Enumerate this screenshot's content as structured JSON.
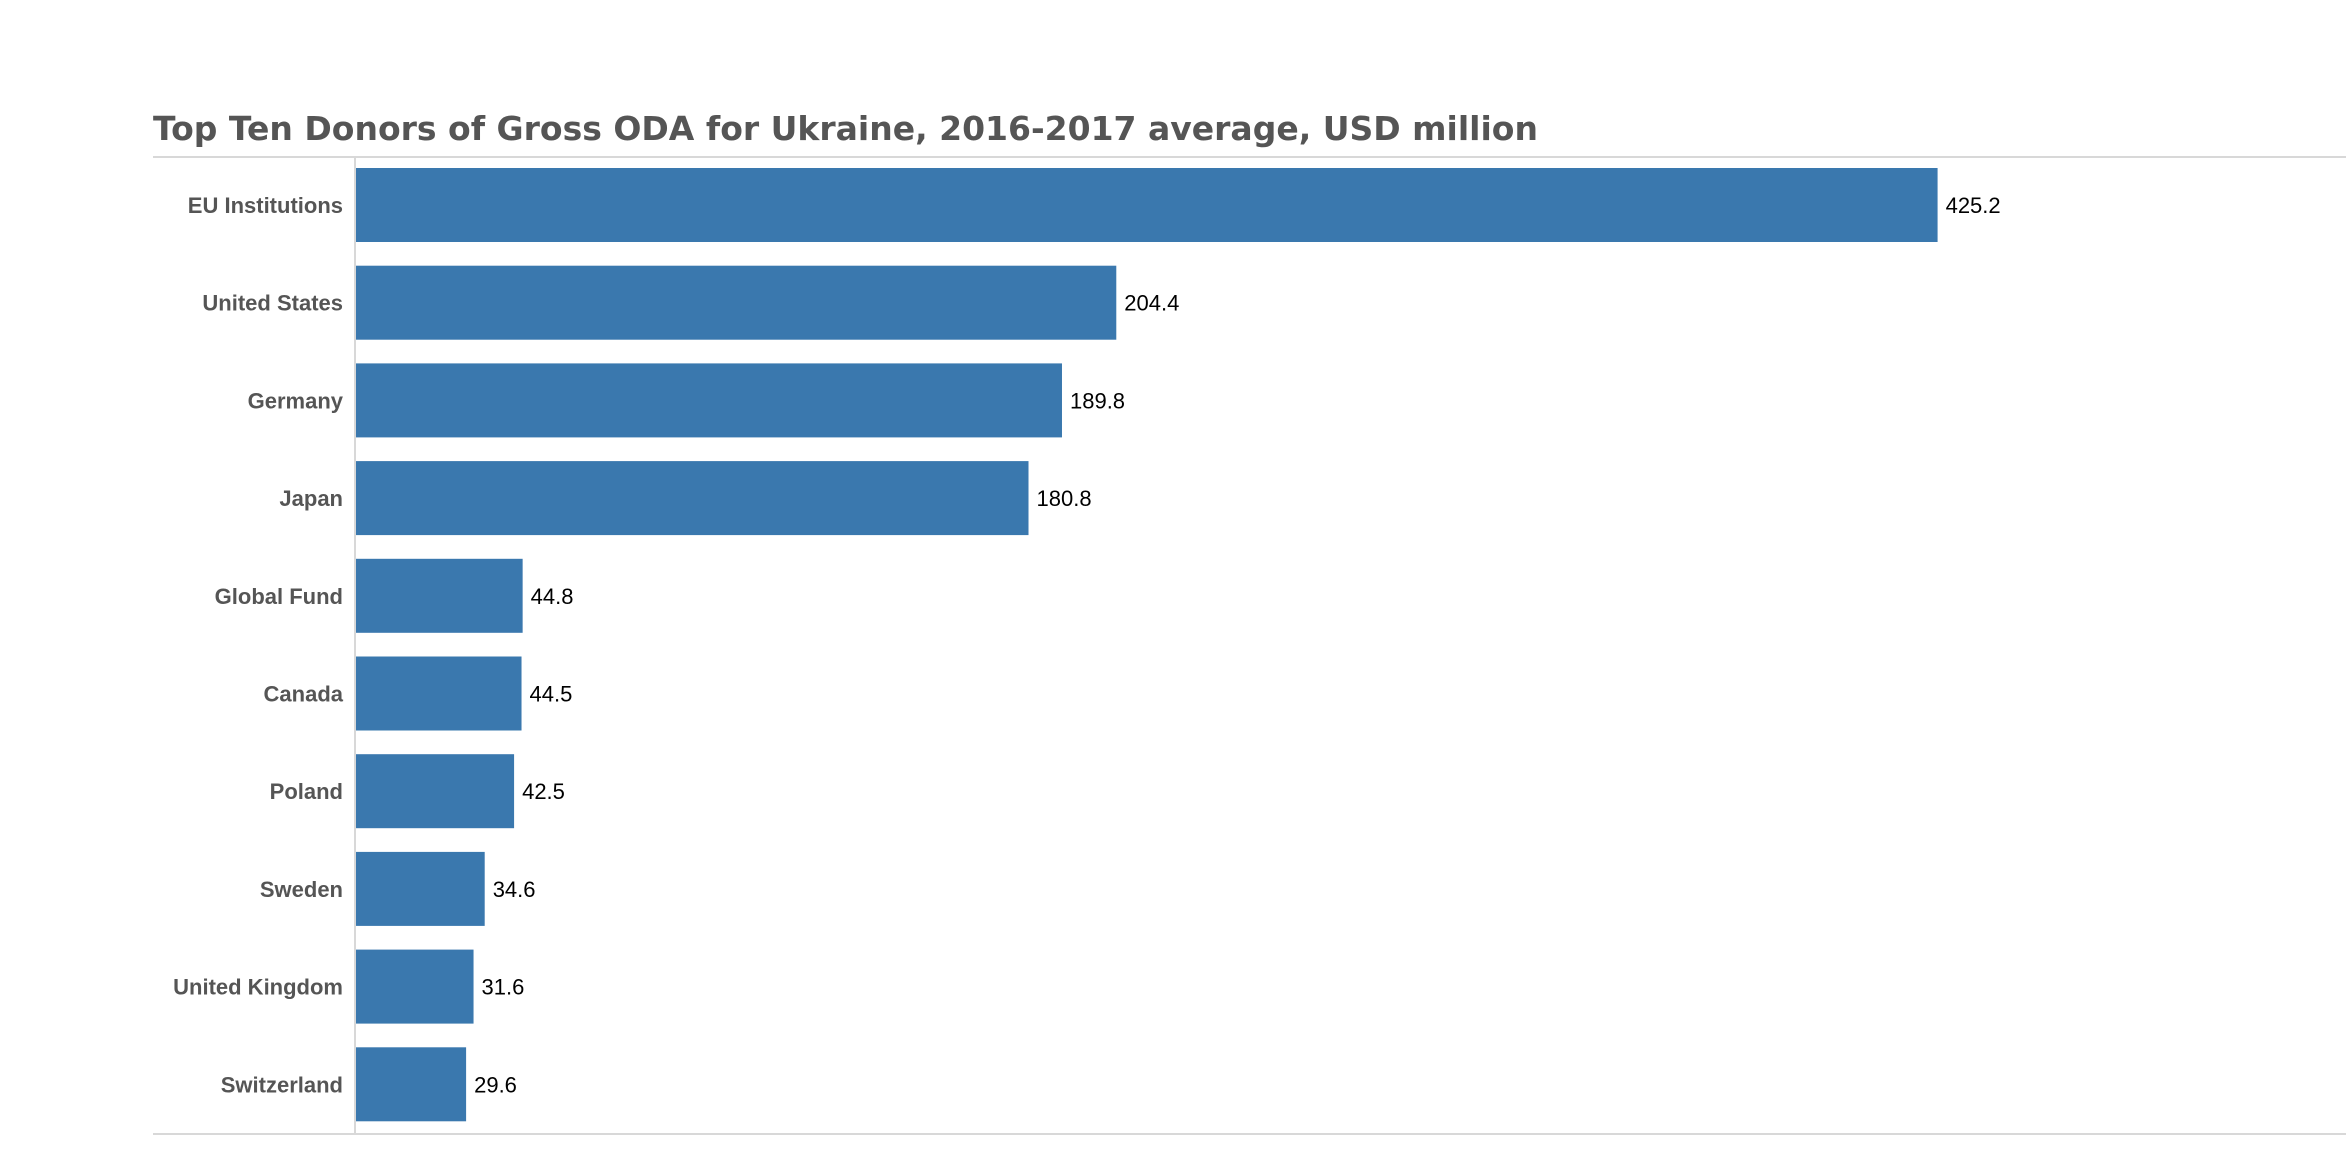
{
  "chart_data": {
    "type": "bar",
    "orientation": "horizontal",
    "title": "Top Ten Donors of Gross ODA for Ukraine, 2016-2017 average, USD million",
    "categories": [
      "EU Institutions",
      "United States",
      "Germany",
      "Japan",
      "Global Fund",
      "Canada",
      "Poland",
      "Sweden",
      "United Kingdom",
      "Switzerland"
    ],
    "values": [
      425.2,
      204.4,
      189.8,
      180.8,
      44.8,
      44.5,
      42.5,
      34.6,
      31.6,
      29.6
    ],
    "value_labels": [
      "425.2",
      "204.4",
      "189.8",
      "180.8",
      "44.8",
      "44.5",
      "42.5",
      "34.6",
      "31.6",
      "29.6"
    ],
    "xlim": [
      0,
      535
    ],
    "grid": false,
    "bar_color": "#3a78ae"
  }
}
